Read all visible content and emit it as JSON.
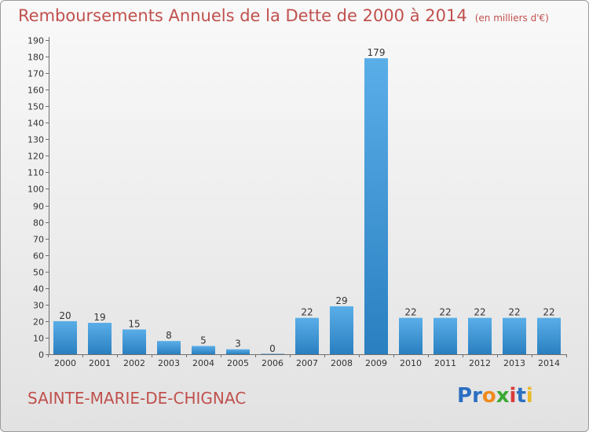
{
  "header": {
    "title": "Remboursements Annuels de la Dette de 2000 à 2014",
    "unit": "(en milliers d'€)"
  },
  "footer": {
    "commune": "SAINTE-MARIE-DE-CHIGNAC",
    "logo": {
      "letters": [
        "P",
        "r",
        "o",
        "x",
        "i",
        "t",
        "i"
      ],
      "colors": [
        "#2a6fc2",
        "#2a6fc2",
        "#f08a1d",
        "#3aa832",
        "#d93a3a",
        "#2a6fc2",
        "#e8b82a"
      ]
    }
  },
  "chart_data": {
    "type": "bar",
    "title": "Remboursements Annuels de la Dette de 2000 à 2014",
    "subtitle": "(en milliers d'€)",
    "categories": [
      "2000",
      "2001",
      "2002",
      "2003",
      "2004",
      "2005",
      "2006",
      "2007",
      "2008",
      "2009",
      "2010",
      "2011",
      "2012",
      "2013",
      "2014"
    ],
    "values": [
      20,
      19,
      15,
      8,
      5,
      3,
      0,
      22,
      29,
      179,
      22,
      22,
      22,
      22,
      22
    ],
    "value_labels": [
      "20",
      "19",
      "15",
      "8",
      "5",
      "3",
      "0",
      "22",
      "29",
      "179",
      "22",
      "22",
      "22",
      "22",
      "22"
    ],
    "yticks": [
      "0",
      "10",
      "20",
      "30",
      "40",
      "50",
      "60",
      "70",
      "80",
      "90",
      "100",
      "110",
      "120",
      "130",
      "140",
      "150",
      "160",
      "170",
      "180",
      "190"
    ],
    "ylim": [
      0,
      190
    ],
    "grid": false,
    "bar_color_light": "#5aaee8",
    "bar_color_dark": "#2a7fc0"
  }
}
